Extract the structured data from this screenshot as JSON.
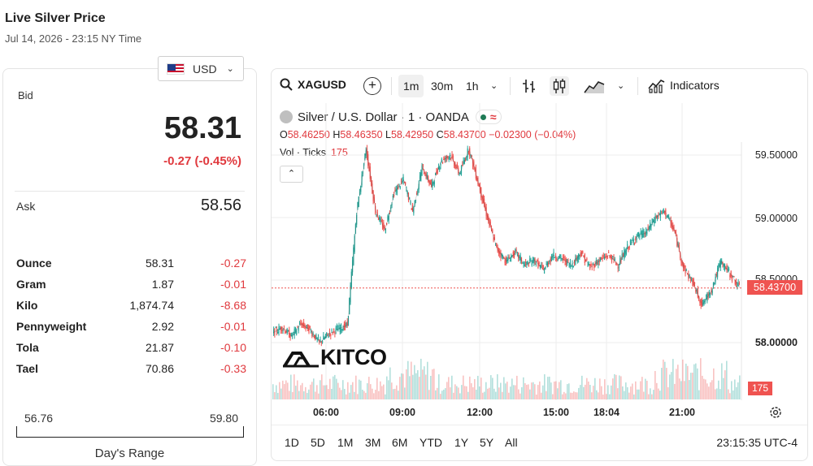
{
  "page": {
    "title": "Live Silver Price",
    "datetime": "Jul 14, 2026 - 23:15 NY Time"
  },
  "currency": {
    "label": "USD",
    "flag_icon": "us-flag-icon"
  },
  "quote": {
    "bid_label": "Bid",
    "bid": "58.31",
    "change": "-0.27 (-0.45%)",
    "ask_label": "Ask",
    "ask": "58.56"
  },
  "units": [
    {
      "name": "Ounce",
      "price": "58.31",
      "change": "-0.27"
    },
    {
      "name": "Gram",
      "price": "1.87",
      "change": "-0.01"
    },
    {
      "name": "Kilo",
      "price": "1,874.74",
      "change": "-8.68"
    },
    {
      "name": "Pennyweight",
      "price": "2.92",
      "change": "-0.01"
    },
    {
      "name": "Tola",
      "price": "21.87",
      "change": "-0.10"
    },
    {
      "name": "Tael",
      "price": "70.86",
      "change": "-0.33"
    }
  ],
  "days_range": {
    "low": "56.76",
    "high": "59.80",
    "label": "Day's Range"
  },
  "chart_toolbar": {
    "symbol": "XAGUSD",
    "intervals": [
      "1m",
      "30m",
      "1h"
    ],
    "active_interval": "1m",
    "indicators_label": "Indicators"
  },
  "chart_legend": {
    "title": "Silver / U.S. Dollar · 1 · OANDA",
    "o_label": "O",
    "o": "58.46250",
    "h_label": "H",
    "h": "58.46350",
    "l_label": "L",
    "l": "58.42950",
    "c_label": "C",
    "c": "58.43700",
    "chg": "−0.02300 (−0.04%)",
    "vol_label": "Vol · Ticks",
    "vol": "175"
  },
  "watermark": "KITCO",
  "colors": {
    "up": "#26a69a",
    "down": "#ef5350",
    "accent_red": "#e0393e"
  },
  "chart_data": {
    "type": "line",
    "price_axis_labels": [
      "59.50000",
      "59.00000",
      "58.50000",
      "58.00000"
    ],
    "last_price": "58.43700",
    "last_volume": "175",
    "time_labels": [
      "06:00",
      "09:00",
      "12:00",
      "15:00",
      "18:04",
      "21:00"
    ],
    "ylim": [
      57.9,
      59.6
    ],
    "x": [
      "04:30",
      "05:00",
      "05:30",
      "06:00",
      "06:30",
      "07:00",
      "07:30",
      "08:00",
      "08:30",
      "08:40",
      "08:50",
      "09:00",
      "09:15",
      "09:30",
      "09:45",
      "10:00",
      "10:15",
      "10:30",
      "10:45",
      "11:00",
      "11:15",
      "11:30",
      "11:45",
      "12:00",
      "12:30",
      "13:00",
      "13:30",
      "14:00",
      "14:30",
      "15:00",
      "15:30",
      "16:00",
      "16:30",
      "17:00",
      "17:30",
      "18:00",
      "18:30",
      "19:00",
      "19:30",
      "20:00",
      "20:30",
      "21:00",
      "21:15",
      "21:30",
      "21:45",
      "22:00",
      "22:15",
      "22:30",
      "22:45",
      "23:00",
      "23:15"
    ],
    "series": [
      {
        "values": [
          58.08,
          58.12,
          58.05,
          58.15,
          58.1,
          58.0,
          58.07,
          58.11,
          58.14,
          59.05,
          59.55,
          59.05,
          58.9,
          59.2,
          59.3,
          59.05,
          59.4,
          59.25,
          59.45,
          59.5,
          59.35,
          59.55,
          59.28,
          59.0,
          58.75,
          58.65,
          58.72,
          58.62,
          58.66,
          58.58,
          58.7,
          58.67,
          58.62,
          58.72,
          58.6,
          58.66,
          58.7,
          58.62,
          58.76,
          58.85,
          58.88,
          59.0,
          59.05,
          58.9,
          58.6,
          58.48,
          58.3,
          58.42,
          58.65,
          58.55,
          58.44
        ]
      }
    ]
  },
  "time_ranges": [
    "1D",
    "5D",
    "1M",
    "3M",
    "6M",
    "YTD",
    "1Y",
    "5Y",
    "All"
  ],
  "clock": "23:15:35 UTC-4"
}
